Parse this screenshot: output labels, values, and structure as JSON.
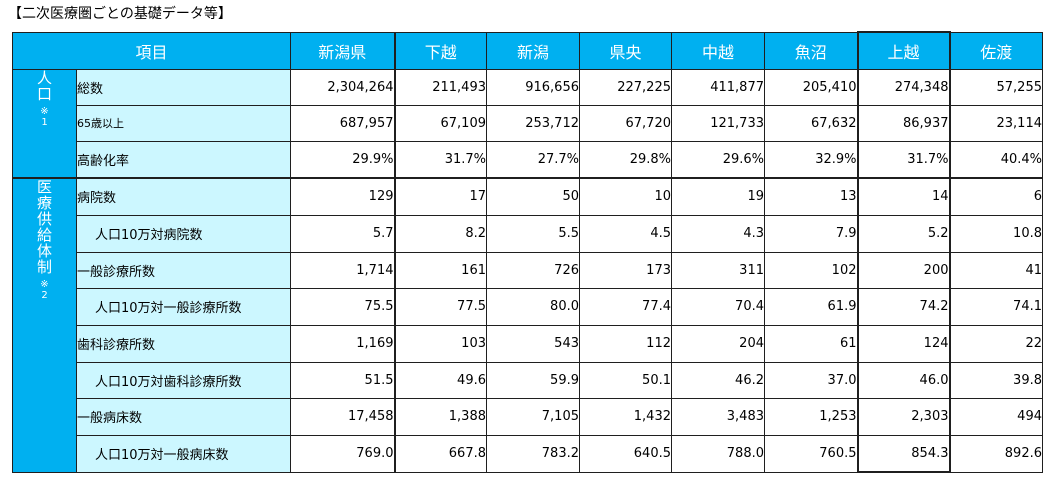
{
  "title": "【二次医療圏ごとの基礎データ等】",
  "header": {
    "item": "項目",
    "regions": [
      "新潟県",
      "下越",
      "新潟",
      "県央",
      "中越",
      "魚沼",
      "上越",
      "佐渡"
    ]
  },
  "groups": {
    "population": {
      "label": "人口",
      "note": "※1"
    },
    "medical": {
      "label": "医療供給体制",
      "note": "※2"
    }
  },
  "rows": [
    {
      "label": "総数",
      "values": [
        "2,304,264",
        "211,493",
        "916,656",
        "227,225",
        "411,877",
        "205,410",
        "274,348",
        "57,255"
      ]
    },
    {
      "label": "65歳以上",
      "values": [
        "687,957",
        "67,109",
        "253,712",
        "67,720",
        "121,733",
        "67,632",
        "86,937",
        "23,114"
      ]
    },
    {
      "label": "高齢化率",
      "values": [
        "29.9%",
        "31.7%",
        "27.7%",
        "29.8%",
        "29.6%",
        "32.9%",
        "31.7%",
        "40.4%"
      ]
    },
    {
      "label": "病院数",
      "values": [
        "129",
        "17",
        "50",
        "10",
        "19",
        "13",
        "14",
        "6"
      ]
    },
    {
      "label": "人口10万対病院数",
      "values": [
        "5.7",
        "8.2",
        "5.5",
        "4.5",
        "4.3",
        "7.9",
        "5.2",
        "10.8"
      ]
    },
    {
      "label": "一般診療所数",
      "values": [
        "1,714",
        "161",
        "726",
        "173",
        "311",
        "102",
        "200",
        "41"
      ]
    },
    {
      "label": "人口10万対一般診療所数",
      "values": [
        "75.5",
        "77.5",
        "80.0",
        "77.4",
        "70.4",
        "61.9",
        "74.2",
        "74.1"
      ]
    },
    {
      "label": "歯科診療所数",
      "values": [
        "1,169",
        "103",
        "543",
        "112",
        "204",
        "61",
        "124",
        "22"
      ]
    },
    {
      "label": "人口10万対歯科診療所数",
      "values": [
        "51.5",
        "49.6",
        "59.9",
        "50.1",
        "46.2",
        "37.0",
        "46.0",
        "39.8"
      ]
    },
    {
      "label": "一般病床数",
      "values": [
        "17,458",
        "1,388",
        "7,105",
        "1,432",
        "3,483",
        "1,253",
        "2,303",
        "494"
      ]
    },
    {
      "label": "人口10万対一般病床数",
      "values": [
        "769.0",
        "667.8",
        "783.2",
        "640.5",
        "788.0",
        "760.5",
        "854.3",
        "892.6"
      ]
    }
  ],
  "colors": {
    "header_bg": "#00b0f0",
    "header_text": "#ffffff",
    "label_bg": "#ccf7ff"
  }
}
